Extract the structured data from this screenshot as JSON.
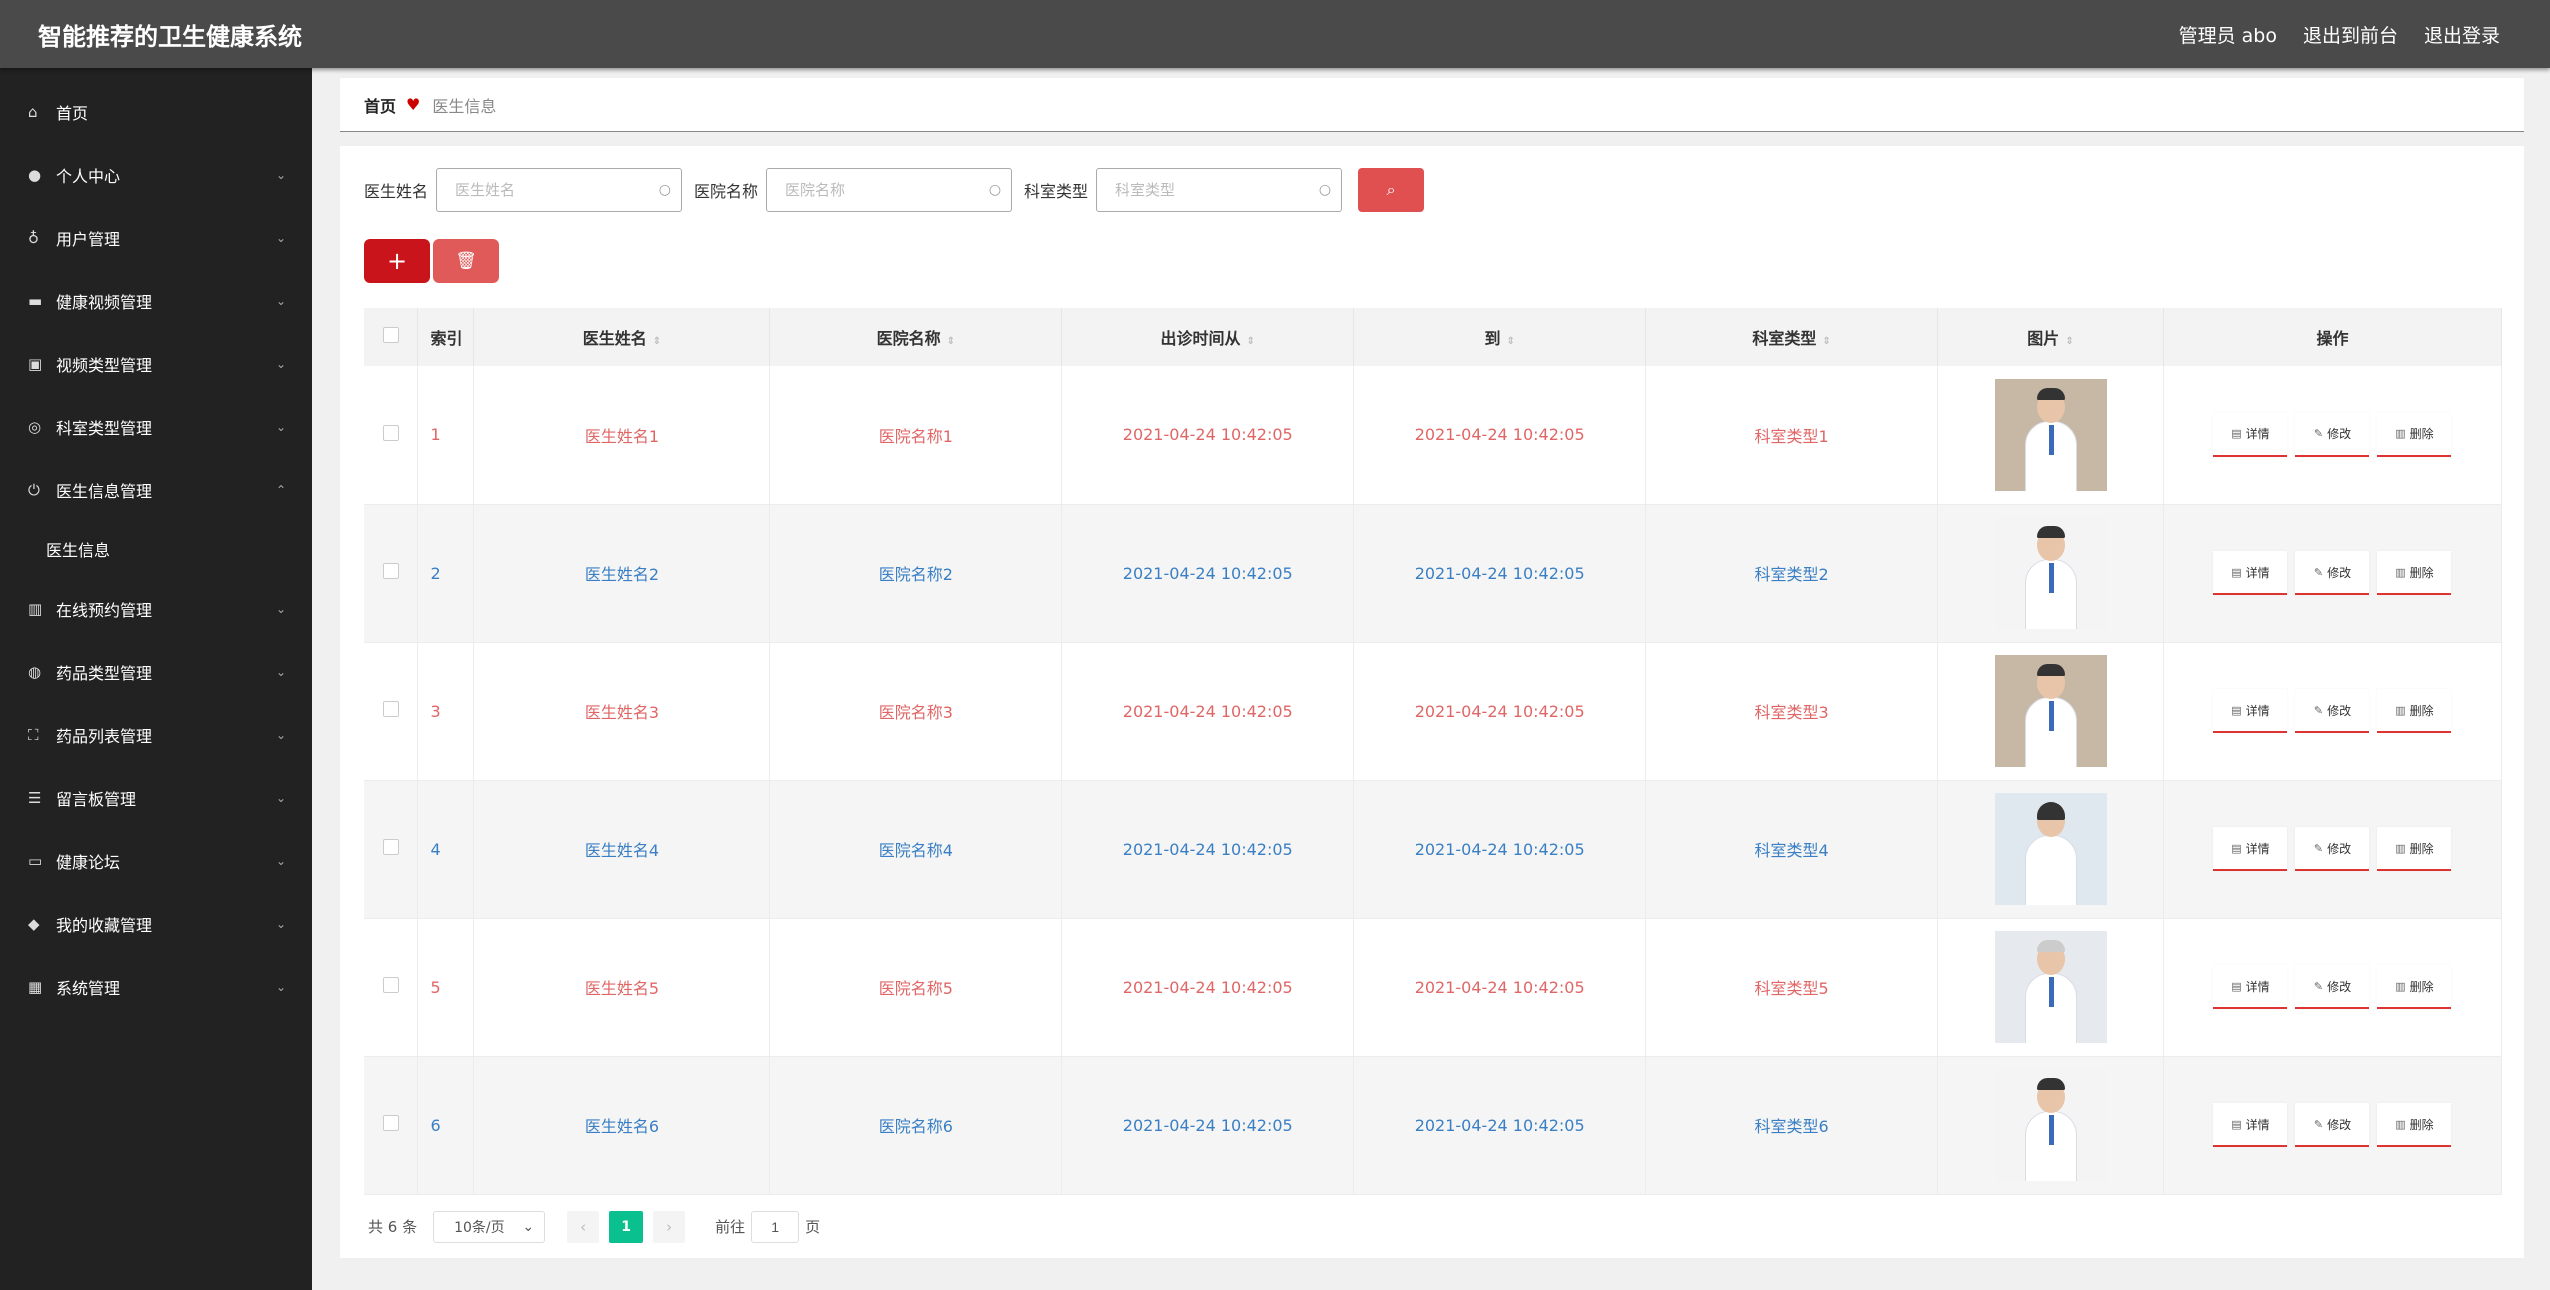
{
  "app": {
    "title": "智能推荐的卫生健康系统",
    "admin": "管理员 abo",
    "to_front": "退出到前台",
    "logout": "退出登录"
  },
  "sidebar": {
    "items": [
      {
        "label": "首页",
        "icon": "home-icon"
      },
      {
        "label": "个人中心",
        "icon": "user-icon"
      },
      {
        "label": "用户管理",
        "icon": "mic-icon"
      },
      {
        "label": "健康视频管理",
        "icon": "chat-icon"
      },
      {
        "label": "视频类型管理",
        "icon": "chart-icon"
      },
      {
        "label": "科室类型管理",
        "icon": "compass-icon"
      },
      {
        "label": "医生信息管理",
        "icon": "power-icon"
      },
      {
        "label": "医生信息",
        "icon": ""
      },
      {
        "label": "在线预约管理",
        "icon": "bars-icon"
      },
      {
        "label": "药品类型管理",
        "icon": "globe-icon"
      },
      {
        "label": "药品列表管理",
        "icon": "expand-icon"
      },
      {
        "label": "留言板管理",
        "icon": "menu-icon"
      },
      {
        "label": "健康论坛",
        "icon": "monitor-icon"
      },
      {
        "label": "我的收藏管理",
        "icon": "pin-icon"
      },
      {
        "label": "系统管理",
        "icon": "grid-icon"
      }
    ]
  },
  "breadcrumb": {
    "home": "首页",
    "current": "医生信息"
  },
  "search": {
    "doctor_label": "医生姓名",
    "doctor_placeholder": "医生姓名",
    "hospital_label": "医院名称",
    "hospital_placeholder": "医院名称",
    "dept_label": "科室类型",
    "dept_placeholder": "科室类型"
  },
  "table": {
    "headers": [
      "索引",
      "医生姓名",
      "医院名称",
      "出诊时间从",
      "到",
      "科室类型",
      "图片",
      "操作"
    ],
    "rows": [
      {
        "index": "1",
        "name": "医生姓名1",
        "hospital": "医院名称1",
        "from": "2021-04-24 10:42:05",
        "to": "2021-04-24 10:42:05",
        "dept": "科室类型1"
      },
      {
        "index": "2",
        "name": "医生姓名2",
        "hospital": "医院名称2",
        "from": "2021-04-24 10:42:05",
        "to": "2021-04-24 10:42:05",
        "dept": "科室类型2"
      },
      {
        "index": "3",
        "name": "医生姓名3",
        "hospital": "医院名称3",
        "from": "2021-04-24 10:42:05",
        "to": "2021-04-24 10:42:05",
        "dept": "科室类型3"
      },
      {
        "index": "4",
        "name": "医生姓名4",
        "hospital": "医院名称4",
        "from": "2021-04-24 10:42:05",
        "to": "2021-04-24 10:42:05",
        "dept": "科室类型4"
      },
      {
        "index": "5",
        "name": "医生姓名5",
        "hospital": "医院名称5",
        "from": "2021-04-24 10:42:05",
        "to": "2021-04-24 10:42:05",
        "dept": "科室类型5"
      },
      {
        "index": "6",
        "name": "医生姓名6",
        "hospital": "医院名称6",
        "from": "2021-04-24 10:42:05",
        "to": "2021-04-24 10:42:05",
        "dept": "科室类型6"
      }
    ],
    "ops": {
      "detail": "详情",
      "edit": "修改",
      "delete": "删除"
    }
  },
  "pager": {
    "total": "共 6 条",
    "size": "10条/页",
    "current": "1",
    "goto_label": "前往",
    "goto_value": "1",
    "page_unit": "页"
  },
  "colors": {
    "accent": "#e05050",
    "odd_row_text": "#e06666",
    "even_row_text": "#3a7fc4",
    "page_active": "#0bc08f"
  }
}
